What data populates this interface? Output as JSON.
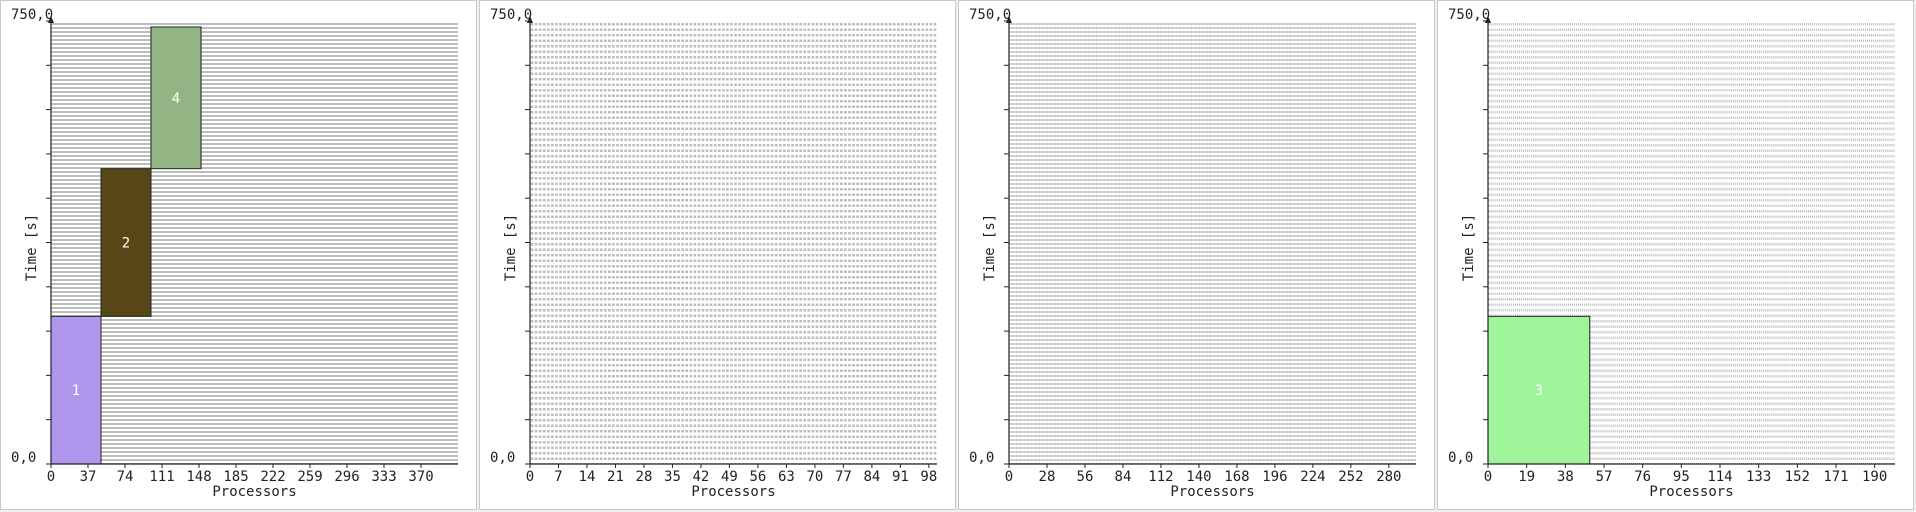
{
  "chart_data": [
    {
      "type": "gantt",
      "xlabel": "Processors",
      "ylabel": "Time [s]",
      "y_top_label": "750,0",
      "y_bottom_label": "0,0",
      "xlim": [
        0,
        407
      ],
      "ylim": [
        0,
        750
      ],
      "processors": 407,
      "xticks": [
        "0",
        "37",
        "74",
        "111",
        "148",
        "185",
        "222",
        "259",
        "296",
        "333",
        "370"
      ],
      "xtick_values": [
        0,
        37,
        74,
        111,
        148,
        185,
        222,
        259,
        296,
        333,
        370
      ],
      "grid": true,
      "jobs": [
        {
          "label": "1",
          "x": 0,
          "width": 50,
          "start": 0,
          "end": 250,
          "color": "#b196ee",
          "text_color": "#ffffff"
        },
        {
          "label": "2",
          "x": 50,
          "width": 50,
          "start": 250,
          "end": 500,
          "color": "#574716",
          "text_color": "#ffffff"
        },
        {
          "label": "4",
          "x": 100,
          "width": 50,
          "start": 500,
          "end": 740,
          "color": "#93b584",
          "text_color": "#ffffff"
        }
      ]
    },
    {
      "type": "gantt",
      "xlabel": "Processors",
      "ylabel": "Time [s]",
      "y_top_label": "750,0",
      "y_bottom_label": "0,0",
      "xlim": [
        0,
        100
      ],
      "ylim": [
        0,
        750
      ],
      "processors": 100,
      "xticks": [
        "0",
        "7",
        "14",
        "21",
        "28",
        "35",
        "42",
        "49",
        "56",
        "63",
        "70",
        "77",
        "84",
        "91",
        "98"
      ],
      "xtick_values": [
        0,
        7,
        14,
        21,
        28,
        35,
        42,
        49,
        56,
        63,
        70,
        77,
        84,
        91,
        98
      ],
      "grid": true,
      "jobs": []
    },
    {
      "type": "gantt",
      "xlabel": "Processors",
      "ylabel": "Time [s]",
      "y_top_label": "750,0",
      "y_bottom_label": "0,0",
      "xlim": [
        0,
        300
      ],
      "ylim": [
        0,
        750
      ],
      "processors": 300,
      "xticks": [
        "0",
        "28",
        "56",
        "84",
        "112",
        "140",
        "168",
        "196",
        "224",
        "252",
        "280"
      ],
      "xtick_values": [
        0,
        28,
        56,
        84,
        112,
        140,
        168,
        196,
        224,
        252,
        280
      ],
      "grid": true,
      "jobs": []
    },
    {
      "type": "gantt",
      "xlabel": "Processors",
      "ylabel": "Time [s]",
      "y_top_label": "750,0",
      "y_bottom_label": "0,0",
      "xlim": [
        0,
        200
      ],
      "ylim": [
        0,
        750
      ],
      "processors": 200,
      "xticks": [
        "0",
        "19",
        "38",
        "57",
        "76",
        "95",
        "114",
        "133",
        "152",
        "171",
        "190"
      ],
      "xtick_values": [
        0,
        19,
        38,
        57,
        76,
        95,
        114,
        133,
        152,
        171,
        190
      ],
      "grid": true,
      "jobs": [
        {
          "label": "3",
          "x": 0,
          "width": 50,
          "start": 0,
          "end": 250,
          "color": "#a0f59b",
          "text_color": "#ffffff"
        }
      ]
    }
  ]
}
